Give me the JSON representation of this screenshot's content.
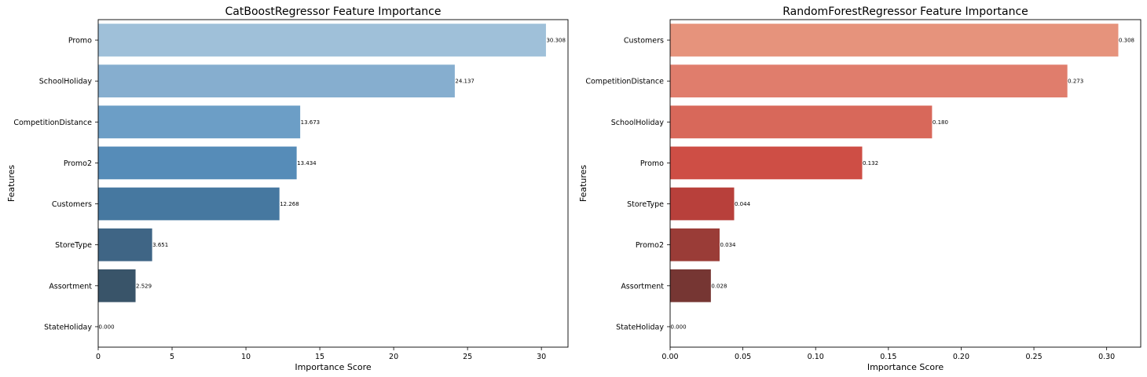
{
  "chart_data": [
    {
      "type": "bar",
      "orientation": "horizontal",
      "title": "CatBoostRegressor Feature Importance",
      "xlabel": "Importance Score",
      "ylabel": "Features",
      "xlim": [
        0,
        31.8
      ],
      "xticks": [
        0,
        5,
        10,
        15,
        20,
        25,
        30
      ],
      "xtick_labels": [
        "0",
        "5",
        "10",
        "15",
        "20",
        "25",
        "30"
      ],
      "grid": false,
      "legend": "none",
      "categories": [
        "Promo",
        "SchoolHoliday",
        "CompetitionDistance",
        "Promo2",
        "Customers",
        "StoreType",
        "Assortment",
        "StateHoliday"
      ],
      "values": [
        30.308,
        24.137,
        13.673,
        13.434,
        12.268,
        3.651,
        2.529,
        0.0
      ],
      "value_labels": [
        "30.308",
        "24.137",
        "13.673",
        "13.434",
        "12.268",
        "3.651",
        "2.529",
        "0.000"
      ],
      "colors": [
        "#9fc0d9",
        "#86aecf",
        "#6c9ec6",
        "#568cb8",
        "#4678a0",
        "#3f6585",
        "#395469",
        "#2f3f4c"
      ]
    },
    {
      "type": "bar",
      "orientation": "horizontal",
      "title": "RandomForestRegressor Feature Importance",
      "xlabel": "Importance Score",
      "ylabel": "Features",
      "xlim": [
        0,
        0.3234
      ],
      "xticks": [
        0,
        0.05,
        0.1,
        0.15,
        0.2,
        0.25,
        0.3
      ],
      "xtick_labels": [
        "0.00",
        "0.05",
        "0.10",
        "0.15",
        "0.20",
        "0.25",
        "0.30"
      ],
      "grid": false,
      "legend": "none",
      "categories": [
        "Customers",
        "CompetitionDistance",
        "SchoolHoliday",
        "Promo",
        "StoreType",
        "Promo2",
        "Assortment",
        "StateHoliday"
      ],
      "values": [
        0.308,
        0.273,
        0.18,
        0.132,
        0.044,
        0.034,
        0.028,
        0.0
      ],
      "value_labels": [
        "0.308",
        "0.273",
        "0.180",
        "0.132",
        "0.044",
        "0.034",
        "0.028",
        "0.000"
      ],
      "colors": [
        "#e6937c",
        "#e07d6c",
        "#d8685a",
        "#ce4e45",
        "#b8403b",
        "#9a3c37",
        "#763633",
        "#4a2a28"
      ]
    }
  ]
}
